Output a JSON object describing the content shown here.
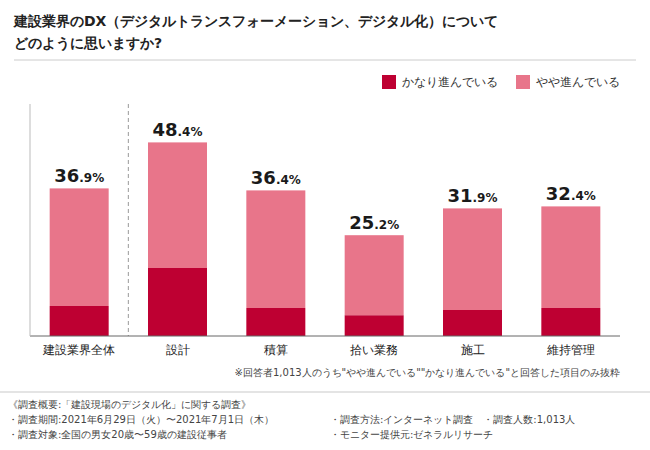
{
  "chart_data": {
    "type": "bar",
    "stacked": true,
    "title": "建設業界のDX（デジタルトランスフォーメーション、デジタル化）について",
    "subtitle": "どのように思いますか?",
    "categories": [
      "建設業界全体",
      "設計",
      "積算",
      "拾い業務",
      "施工",
      "維持管理"
    ],
    "series": [
      {
        "name": "かなり進んでいる",
        "color": "#be0032",
        "values": [
          7.5,
          17.0,
          7.0,
          5.2,
          6.5,
          7.0
        ]
      },
      {
        "name": "やや進んでいる",
        "color": "#e8758a",
        "values": [
          29.4,
          31.4,
          29.4,
          20.0,
          25.4,
          25.4
        ]
      }
    ],
    "totals": [
      36.9,
      48.4,
      36.4,
      25.2,
      31.9,
      32.4
    ],
    "total_labels": [
      "36.9%",
      "48.4%",
      "36.4%",
      "25.2%",
      "31.9%",
      "32.4%"
    ],
    "ylim": [
      0,
      58
    ],
    "yticks": [],
    "tick_labels": "x",
    "grid": false,
    "legend": "upper right",
    "note": "※回答者1,013人のうち\"やや進んでいる\"\"かなり進んでいる\"と回答した項目のみ抜粋",
    "footer": [
      [
        "《調査概要:「建設現場のデジタル化」に関する調査》",
        "・調査期間:2021年6月29日（火）〜2021年7月1日（木）",
        "・調査対象:全国の男女20歳〜59歳の建設従事者"
      ],
      [
        "・調査方法:インターネット調査　・調査人数:1,013人",
        "・モニター提供元:ゼネラルリサーチ"
      ]
    ]
  }
}
